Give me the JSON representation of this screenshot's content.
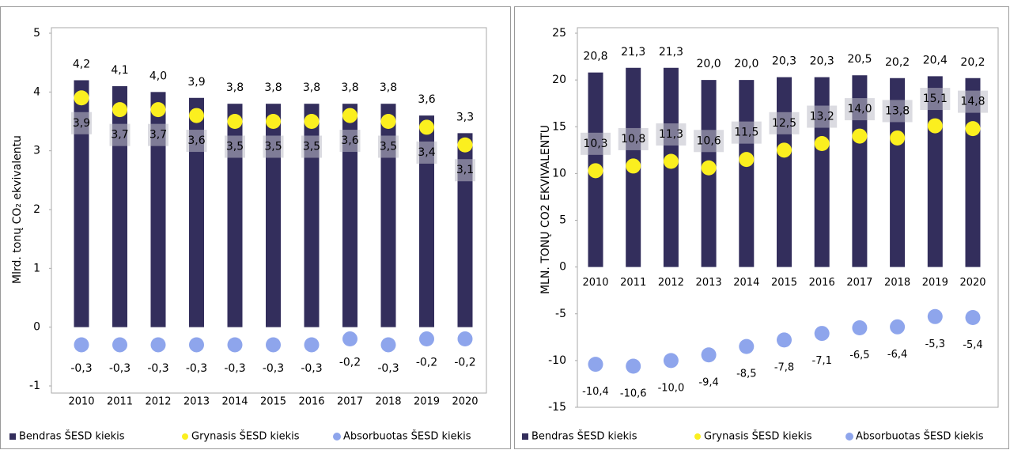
{
  "chart_data": [
    {
      "type": "bar",
      "y_label": "Mlrd. tonų CO₂ ekvivalentu",
      "categories": [
        "2010",
        "2011",
        "2012",
        "2013",
        "2014",
        "2015",
        "2016",
        "2017",
        "2018",
        "2019",
        "2020"
      ],
      "ylim": [
        -1,
        5
      ],
      "yticks": [
        -1,
        0,
        1,
        2,
        3,
        4,
        5
      ],
      "series": [
        {
          "name": "Bendras ŠESD kiekis",
          "type": "bar",
          "color": "#332e5c",
          "values": [
            4.2,
            4.1,
            4.0,
            3.9,
            3.8,
            3.8,
            3.8,
            3.8,
            3.8,
            3.6,
            3.3
          ],
          "value_labels": [
            "4,2",
            "4,1",
            "4,0",
            "3,9",
            "3,8",
            "3,8",
            "3,8",
            "3,8",
            "3,8",
            "3,6",
            "3,3"
          ]
        },
        {
          "name": "Grynasis ŠESD kiekis",
          "type": "scatter",
          "color": "#fbef1f",
          "values": [
            3.9,
            3.7,
            3.7,
            3.6,
            3.5,
            3.5,
            3.5,
            3.6,
            3.5,
            3.4,
            3.1
          ],
          "value_labels": [
            "3,9",
            "3,7",
            "3,7",
            "3,6",
            "3,5",
            "3,5",
            "3,5",
            "3,6",
            "3,5",
            "3,4",
            "3,1"
          ]
        },
        {
          "name": "Absorbuotas ŠESD kiekis",
          "type": "scatter",
          "color": "#8ea5ec",
          "values": [
            -0.3,
            -0.3,
            -0.3,
            -0.3,
            -0.3,
            -0.3,
            -0.3,
            -0.2,
            -0.3,
            -0.2,
            -0.2
          ],
          "value_labels": [
            "-0,3",
            "-0,3",
            "-0,3",
            "-0,3",
            "-0,3",
            "-0,3",
            "-0,3",
            "-0,2",
            "-0,3",
            "-0,2",
            "-0,2"
          ]
        }
      ]
    },
    {
      "type": "bar",
      "y_label": "MLN. TONŲ CO2 EKVIVALENTU",
      "categories": [
        "2010",
        "2011",
        "2012",
        "2013",
        "2014",
        "2015",
        "2016",
        "2017",
        "2018",
        "2019",
        "2020"
      ],
      "ylim": [
        -15,
        25
      ],
      "yticks": [
        -15,
        -10,
        -5,
        0,
        5,
        10,
        15,
        20,
        25
      ],
      "series": [
        {
          "name": "Bendras ŠESD kiekis",
          "type": "bar",
          "color": "#332e5c",
          "values": [
            20.8,
            21.3,
            21.3,
            20.0,
            20.0,
            20.3,
            20.3,
            20.5,
            20.2,
            20.4,
            20.2
          ],
          "value_labels": [
            "20,8",
            "21,3",
            "21,3",
            "20,0",
            "20,0",
            "20,3",
            "20,3",
            "20,5",
            "20,2",
            "20,4",
            "20,2"
          ]
        },
        {
          "name": "Grynasis ŠESD kiekis",
          "type": "scatter",
          "color": "#fbef1f",
          "values": [
            10.3,
            10.8,
            11.3,
            10.6,
            11.5,
            12.5,
            13.2,
            14.0,
            13.8,
            15.1,
            14.8
          ],
          "value_labels": [
            "10,3",
            "10,8",
            "11,3",
            "10,6",
            "11,5",
            "12,5",
            "13,2",
            "14,0",
            "13,8",
            "15,1",
            "14,8"
          ]
        },
        {
          "name": "Absorbuotas ŠESD kiekis",
          "type": "scatter",
          "color": "#8ea5ec",
          "values": [
            -10.4,
            -10.6,
            -10.0,
            -9.4,
            -8.5,
            -7.8,
            -7.1,
            -6.5,
            -6.4,
            -5.3,
            -5.4
          ],
          "value_labels": [
            "-10,4",
            "-10,6",
            "-10,0",
            "-9,4",
            "-8,5",
            "-7,8",
            "-7,1",
            "-6,5",
            "-6,4",
            "-5,3",
            "-5,4"
          ]
        }
      ]
    }
  ]
}
